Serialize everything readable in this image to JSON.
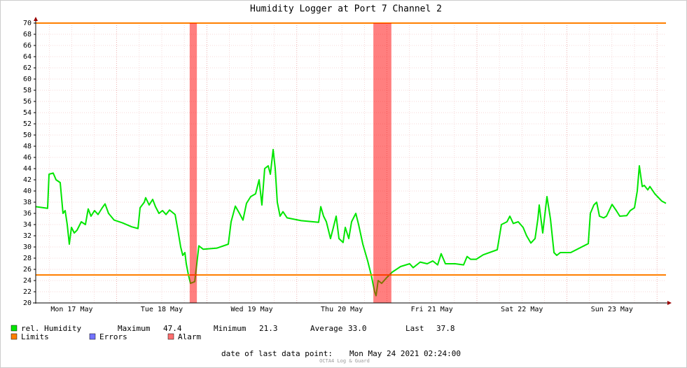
{
  "chart_data": {
    "type": "line",
    "title": "Humidity Logger at Port 7 Channel 2",
    "x": [
      17.1,
      17.232,
      17.248,
      17.294,
      17.326,
      17.372,
      17.403,
      17.427,
      17.45,
      17.473,
      17.497,
      17.528,
      17.559,
      17.606,
      17.652,
      17.683,
      17.714,
      17.753,
      17.792,
      17.839,
      17.87,
      17.909,
      17.971,
      18.064,
      18.166,
      18.236,
      18.259,
      18.306,
      18.321,
      18.36,
      18.399,
      18.43,
      18.469,
      18.508,
      18.547,
      18.586,
      18.648,
      18.679,
      18.71,
      18.733,
      18.757,
      18.772,
      18.796,
      18.819,
      18.866,
      18.889,
      18.912,
      18.959,
      19.114,
      19.239,
      19.27,
      19.317,
      19.363,
      19.402,
      19.441,
      19.488,
      19.542,
      19.581,
      19.612,
      19.643,
      19.682,
      19.706,
      19.737,
      19.76,
      19.783,
      19.814,
      19.846,
      19.892,
      20.048,
      20.242,
      20.266,
      20.297,
      20.328,
      20.374,
      20.406,
      20.437,
      20.468,
      20.514,
      20.538,
      20.577,
      20.608,
      20.655,
      20.686,
      20.733,
      20.787,
      20.826,
      20.864,
      20.88,
      20.903,
      20.942,
      20.997,
      21.059,
      21.152,
      21.253,
      21.292,
      21.37,
      21.448,
      21.51,
      21.564,
      21.603,
      21.65,
      21.759,
      21.852,
      21.891,
      21.93,
      21.992,
      22.07,
      22.226,
      22.272,
      22.334,
      22.366,
      22.404,
      22.459,
      22.513,
      22.552,
      22.599,
      22.646,
      22.677,
      22.692,
      22.731,
      22.778,
      22.817,
      22.856,
      22.887,
      22.926,
      23.042,
      23.237,
      23.26,
      23.299,
      23.33,
      23.361,
      23.408,
      23.439,
      23.501,
      23.548,
      23.587,
      23.664,
      23.703,
      23.75,
      23.781,
      23.804,
      23.836,
      23.859,
      23.898,
      23.921,
      23.976,
      24.053,
      24.1
    ],
    "series": [
      {
        "name": "rel. Humidity",
        "color": "#00e600",
        "values": [
          37.2,
          36.9,
          43.0,
          43.2,
          42,
          41.5,
          36,
          36.5,
          34,
          30.5,
          33.5,
          32.5,
          33,
          34.5,
          34,
          36.8,
          35.5,
          36.5,
          35.8,
          37,
          37.7,
          36,
          34.8,
          34.3,
          33.6,
          33.3,
          37,
          38,
          38.8,
          37.5,
          38.5,
          37.2,
          36,
          36.5,
          35.8,
          36.6,
          35.8,
          33,
          30,
          28.5,
          29,
          27,
          25,
          23.5,
          23.8,
          27,
          30.2,
          29.6,
          29.8,
          30.5,
          34.5,
          37.3,
          36,
          34.8,
          37.8,
          39,
          39.5,
          42,
          37.5,
          44,
          44.5,
          43,
          47.4,
          44,
          38,
          35.5,
          36.3,
          35.2,
          34.7,
          34.4,
          37.2,
          35.5,
          34.5,
          31.5,
          33.5,
          35.5,
          31.5,
          30.8,
          33.5,
          31.5,
          34.5,
          36,
          34,
          30.5,
          27.5,
          25,
          22,
          21.3,
          24,
          23.5,
          24.5,
          25.5,
          26.5,
          27,
          26.3,
          27.3,
          27,
          27.5,
          26.8,
          28.8,
          27,
          27,
          26.8,
          28.3,
          27.8,
          27.8,
          28.6,
          29.5,
          34,
          34.5,
          35.5,
          34.2,
          34.5,
          33.5,
          32,
          30.7,
          31.5,
          35,
          37.5,
          32.5,
          39,
          35,
          29,
          28.5,
          29,
          29,
          30.6,
          36,
          37.5,
          38,
          35.5,
          35.2,
          35.5,
          37.6,
          36.5,
          35.5,
          35.6,
          36.5,
          37,
          40,
          44.5,
          40.8,
          41,
          40.2,
          40.8,
          39.5,
          38.2,
          37.8
        ]
      }
    ],
    "xlim": [
      17.1,
      24.1
    ],
    "xticks": [
      {
        "value": 17.5,
        "label": "Mon 17 May"
      },
      {
        "value": 18.5,
        "label": "Tue 18 May"
      },
      {
        "value": 19.5,
        "label": "Wed 19 May"
      },
      {
        "value": 20.5,
        "label": "Thu 20 May"
      },
      {
        "value": 21.5,
        "label": "Fri 21 May"
      },
      {
        "value": 22.5,
        "label": "Sat 22 May"
      },
      {
        "value": 23.5,
        "label": "Sun 23 May"
      }
    ],
    "ylim": [
      20,
      70
    ],
    "yticks": [
      20,
      22,
      24,
      26,
      28,
      30,
      32,
      34,
      36,
      38,
      40,
      42,
      44,
      46,
      48,
      50,
      52,
      54,
      56,
      58,
      60,
      62,
      64,
      66,
      68,
      70
    ],
    "grid": true,
    "limits": {
      "name": "Limits",
      "color": "#ff7f00",
      "values": [
        25,
        70
      ]
    },
    "errors": {
      "name": "Errors",
      "color": "#7474ff"
    },
    "alarm": {
      "name": "Alarm",
      "color": "#ff7070",
      "spans": [
        [
          18.81,
          18.89
        ],
        [
          20.85,
          21.05
        ]
      ]
    },
    "stats": {
      "names": [
        "Maximum",
        "Minimum",
        "Average",
        "Last"
      ],
      "values": [
        47.4,
        21.3,
        33,
        37.8
      ],
      "value_labels": [
        "47.4",
        "21.3",
        "33.0",
        "37.8"
      ]
    },
    "footer": {
      "label": "date of last data point:",
      "value": "Mon May 24 2021 02:24:00"
    },
    "watermark": "OCTA4 Log & Guard"
  }
}
